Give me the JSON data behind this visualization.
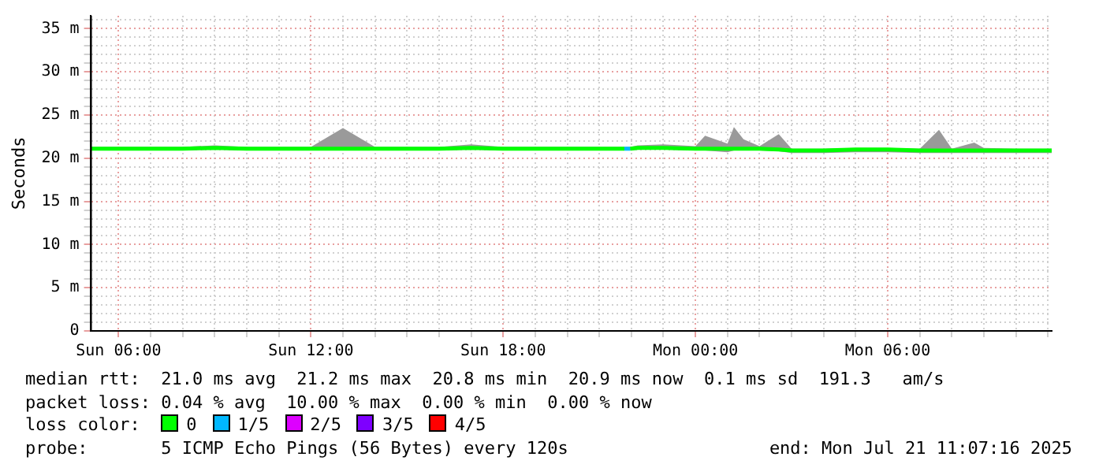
{
  "chart_data": {
    "type": "line",
    "ylabel": "Seconds",
    "legend_title": "loss color:",
    "legend": "bottom",
    "grid": true,
    "xlim": [
      "2025-07-20T05:07",
      "2025-07-21T11:07"
    ],
    "xticks": [
      {
        "value": "2025-07-20T06:00",
        "label": "Sun 06:00"
      },
      {
        "value": "2025-07-20T07:00",
        "label": null
      },
      {
        "value": "2025-07-20T08:00",
        "label": null
      },
      {
        "value": "2025-07-20T09:00",
        "label": null
      },
      {
        "value": "2025-07-20T10:00",
        "label": null
      },
      {
        "value": "2025-07-20T11:00",
        "label": null
      },
      {
        "value": "2025-07-20T12:00",
        "label": "Sun 12:00"
      },
      {
        "value": "2025-07-20T13:00",
        "label": null
      },
      {
        "value": "2025-07-20T14:00",
        "label": null
      },
      {
        "value": "2025-07-20T15:00",
        "label": null
      },
      {
        "value": "2025-07-20T16:00",
        "label": null
      },
      {
        "value": "2025-07-20T17:00",
        "label": null
      },
      {
        "value": "2025-07-20T18:00",
        "label": "Sun 18:00"
      },
      {
        "value": "2025-07-20T19:00",
        "label": null
      },
      {
        "value": "2025-07-20T20:00",
        "label": null
      },
      {
        "value": "2025-07-20T21:00",
        "label": null
      },
      {
        "value": "2025-07-20T22:00",
        "label": null
      },
      {
        "value": "2025-07-20T23:00",
        "label": null
      },
      {
        "value": "2025-07-21T00:00",
        "label": "Mon 00:00"
      },
      {
        "value": "2025-07-21T01:00",
        "label": null
      },
      {
        "value": "2025-07-21T02:00",
        "label": null
      },
      {
        "value": "2025-07-21T03:00",
        "label": null
      },
      {
        "value": "2025-07-21T04:00",
        "label": null
      },
      {
        "value": "2025-07-21T05:00",
        "label": null
      },
      {
        "value": "2025-07-21T06:00",
        "label": "Mon 06:00"
      },
      {
        "value": "2025-07-21T07:00",
        "label": null
      },
      {
        "value": "2025-07-21T08:00",
        "label": null
      },
      {
        "value": "2025-07-21T09:00",
        "label": null
      },
      {
        "value": "2025-07-21T10:00",
        "label": null
      },
      {
        "value": "2025-07-21T11:00",
        "label": null
      }
    ],
    "ylim": [
      0,
      36.5
    ],
    "yticks": [
      {
        "value": 0,
        "label": "0"
      },
      {
        "value": 1,
        "label": null
      },
      {
        "value": 2,
        "label": null
      },
      {
        "value": 3,
        "label": null
      },
      {
        "value": 4,
        "label": null
      },
      {
        "value": 5,
        "label": "5 m"
      },
      {
        "value": 6,
        "label": null
      },
      {
        "value": 7,
        "label": null
      },
      {
        "value": 8,
        "label": null
      },
      {
        "value": 9,
        "label": null
      },
      {
        "value": 10,
        "label": "10 m"
      },
      {
        "value": 11,
        "label": null
      },
      {
        "value": 12,
        "label": null
      },
      {
        "value": 13,
        "label": null
      },
      {
        "value": 14,
        "label": null
      },
      {
        "value": 15,
        "label": "15 m"
      },
      {
        "value": 16,
        "label": null
      },
      {
        "value": 17,
        "label": null
      },
      {
        "value": 18,
        "label": null
      },
      {
        "value": 19,
        "label": null
      },
      {
        "value": 20,
        "label": "20 m"
      },
      {
        "value": 21,
        "label": null
      },
      {
        "value": 22,
        "label": null
      },
      {
        "value": 23,
        "label": null
      },
      {
        "value": 24,
        "label": null
      },
      {
        "value": 25,
        "label": "25 m"
      },
      {
        "value": 26,
        "label": null
      },
      {
        "value": 27,
        "label": null
      },
      {
        "value": 28,
        "label": null
      },
      {
        "value": 29,
        "label": null
      },
      {
        "value": 30,
        "label": "30 m"
      },
      {
        "value": 31,
        "label": null
      },
      {
        "value": 32,
        "label": null
      },
      {
        "value": 33,
        "label": null
      },
      {
        "value": 34,
        "label": null
      },
      {
        "value": 35,
        "label": "35 m"
      },
      {
        "value": 36,
        "label": null
      }
    ],
    "series": [
      {
        "name": "0",
        "color": "#00ff00",
        "x": [
          "2025-07-20T05:07",
          "2025-07-20T06:00",
          "2025-07-20T07:00",
          "2025-07-20T08:00",
          "2025-07-20T09:00",
          "2025-07-20T10:00",
          "2025-07-20T11:00",
          "2025-07-20T12:00",
          "2025-07-20T13:00",
          "2025-07-20T14:00",
          "2025-07-20T15:00",
          "2025-07-20T16:00",
          "2025-07-20T17:00",
          "2025-07-20T18:00",
          "2025-07-20T19:00",
          "2025-07-20T20:00",
          "2025-07-20T21:00",
          "2025-07-20T21:47",
          "2025-07-20T21:52",
          "2025-07-20T21:58",
          "2025-07-20T22:12",
          "2025-07-20T23:00",
          "2025-07-21T00:00",
          "2025-07-21T00:18",
          "2025-07-21T01:00",
          "2025-07-21T01:12",
          "2025-07-21T01:30",
          "2025-07-21T02:00",
          "2025-07-21T02:36",
          "2025-07-21T03:00",
          "2025-07-21T04:00",
          "2025-07-21T05:00",
          "2025-07-21T06:00",
          "2025-07-21T07:00",
          "2025-07-21T07:36",
          "2025-07-21T08:00",
          "2025-07-21T08:42",
          "2025-07-21T09:00",
          "2025-07-21T10:00",
          "2025-07-21T11:07"
        ],
        "values": [
          21.1,
          21.1,
          21.1,
          21.1,
          21.2,
          21.1,
          21.1,
          21.1,
          21.1,
          21.1,
          21.1,
          21.1,
          21.2,
          21.1,
          21.1,
          21.1,
          21.1,
          21.1,
          null,
          21.1,
          21.2,
          21.2,
          21.1,
          21.1,
          21.1,
          21.1,
          21.1,
          21.1,
          21.0,
          20.9,
          20.9,
          21.0,
          21.0,
          20.9,
          20.9,
          20.9,
          20.9,
          20.9,
          20.9,
          20.9
        ],
        "lower": [
          20.9,
          20.9,
          20.9,
          20.9,
          21.0,
          20.9,
          20.9,
          20.9,
          20.9,
          20.9,
          20.9,
          20.9,
          21.0,
          20.9,
          20.9,
          20.9,
          20.9,
          20.9,
          20.9,
          20.9,
          21.0,
          21.0,
          20.9,
          20.9,
          20.7,
          20.9,
          20.9,
          20.9,
          20.8,
          20.6,
          20.6,
          20.7,
          20.7,
          20.6,
          20.6,
          20.6,
          20.6,
          20.6,
          20.6,
          20.6
        ],
        "upper": [
          21.3,
          21.3,
          21.3,
          21.3,
          21.5,
          21.3,
          21.3,
          21.3,
          23.5,
          21.3,
          21.3,
          21.3,
          21.6,
          21.3,
          21.3,
          21.3,
          21.3,
          21.3,
          21.3,
          21.3,
          21.5,
          21.6,
          21.4,
          22.6,
          21.7,
          23.6,
          22.2,
          21.4,
          22.8,
          21.1,
          21.1,
          21.2,
          21.2,
          21.1,
          23.3,
          21.1,
          21.8,
          21.2,
          21.1,
          21.1
        ]
      },
      {
        "name": "1/5",
        "color": "#00b8ff",
        "x": [
          "2025-07-20T21:47",
          "2025-07-20T21:58"
        ],
        "values": [
          21.1,
          21.1
        ]
      },
      {
        "name": "2/5",
        "color": "#dd00ff"
      },
      {
        "name": "3/5",
        "color": "#7e00ff"
      },
      {
        "name": "4/5",
        "color": "#ff0000"
      }
    ],
    "annotations": [
      "median rtt:  21.0 ms avg  21.2 ms max  20.8 ms min  20.9 ms now  0.1 ms sd  191.3   am/s",
      "packet loss: 0.04 % avg  10.00 % max  0.00 % min  0.00 % now",
      "probe:       5 ICMP Echo Pings (56 Bytes) every 120s",
      "end: Mon Jul 21 11:07:16 2025"
    ]
  }
}
